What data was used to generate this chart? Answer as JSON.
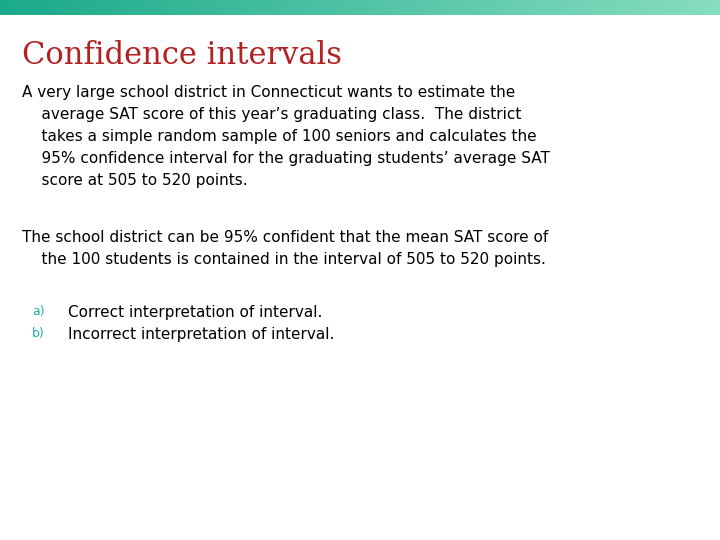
{
  "title": "Confidence intervals",
  "title_color": "#B22222",
  "title_fontsize": 22,
  "background_color": "#FFFFFF",
  "top_bar_color_left": "#1AAA8A",
  "top_bar_color_right": "#88DDC0",
  "body_text1": [
    "A very large school district in Connecticut wants to estimate the",
    "    average SAT score of this year’s graduating class.  The district",
    "    takes a simple random sample of 100 seniors and calculates the",
    "    95% confidence interval for the graduating students’ average SAT",
    "    score at 505 to 520 points."
  ],
  "body_text2": [
    "The school district can be 95% confident that the mean SAT score of",
    "    the 100 students is contained in the interval of 505 to 520 points."
  ],
  "label_a": "a)",
  "label_b": "b)",
  "item_a": "Correct interpretation of interval.",
  "item_b": "Incorrect interpretation of interval.",
  "label_color": "#20B2AA",
  "body_fontsize": 11,
  "item_fontsize": 11,
  "label_fontsize": 9
}
